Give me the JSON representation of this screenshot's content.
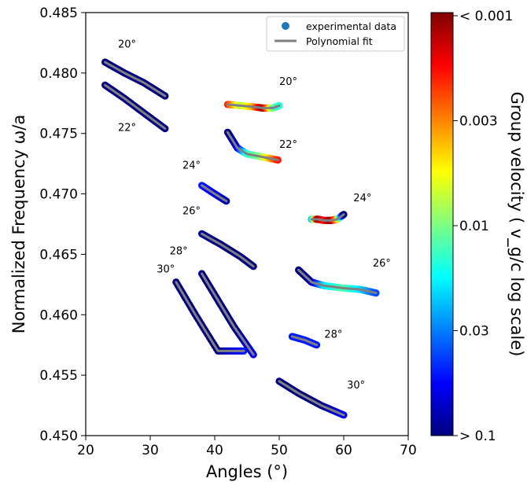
{
  "chart_data": {
    "type": "scatter",
    "xlabel": "Angles (°)",
    "ylabel": "Normalized Frequency ω/a",
    "xlim": [
      20,
      70
    ],
    "ylim": [
      0.45,
      0.485
    ],
    "xticks": [
      "20",
      "30",
      "40",
      "50",
      "60",
      "70"
    ],
    "yticks": [
      "0.450",
      "0.455",
      "0.460",
      "0.465",
      "0.470",
      "0.475",
      "0.480",
      "0.485"
    ],
    "grid": false,
    "legend": {
      "position": "top-right",
      "entries": [
        "experimental data",
        "Polynomial fit"
      ]
    },
    "colorbar": {
      "label": "Group velocity ( v_g/c log scale)",
      "scale": "log",
      "tick_labels": [
        "< 0.001",
        "0.003",
        "0.01",
        "0.03",
        "> 0.1"
      ],
      "colormap": "jet",
      "high_end": "< 0.001",
      "low_end": "> 0.1"
    },
    "colors": {
      "fit_line": "#808080",
      "legend_marker": "#1f77b4"
    },
    "series": [
      {
        "label": "20°",
        "points": [
          [
            23.0,
            0.4809
          ],
          [
            26.0,
            0.48
          ],
          [
            29.0,
            0.4792
          ],
          [
            32.3,
            0.4781
          ]
        ],
        "vg": [
          0.1,
          0.1,
          0.1,
          0.1
        ]
      },
      {
        "label": "22°",
        "points": [
          [
            23.0,
            0.479
          ],
          [
            26.0,
            0.4779
          ],
          [
            29.0,
            0.4767
          ],
          [
            32.3,
            0.4754
          ]
        ],
        "vg": [
          0.1,
          0.1,
          0.1,
          0.1
        ]
      },
      {
        "label": "24°",
        "points": [
          [
            38.0,
            0.4707
          ],
          [
            40.0,
            0.47
          ],
          [
            41.8,
            0.4694
          ]
        ],
        "vg": [
          0.05,
          0.06,
          0.08
        ]
      },
      {
        "label": "26°",
        "points": [
          [
            38.0,
            0.4667
          ],
          [
            41.0,
            0.4658
          ],
          [
            44.0,
            0.4648
          ],
          [
            46.0,
            0.464
          ]
        ],
        "vg": [
          0.09,
          0.1,
          0.1,
          0.1
        ]
      },
      {
        "label": "28°",
        "points": [
          [
            38.0,
            0.4634
          ],
          [
            40.5,
            0.4612
          ],
          [
            43.0,
            0.459
          ],
          [
            46.0,
            0.4567
          ]
        ],
        "vg": [
          0.1,
          0.1,
          0.1,
          0.06
        ]
      },
      {
        "label": "30°",
        "points": [
          [
            34.0,
            0.4627
          ],
          [
            37.0,
            0.46
          ],
          [
            40.5,
            0.457
          ],
          [
            44.5,
            0.457
          ]
        ],
        "vg": [
          0.1,
          0.1,
          0.1,
          0.05
        ]
      },
      {
        "label": "20°",
        "points": [
          [
            42.0,
            0.4774
          ],
          [
            44.0,
            0.4773
          ],
          [
            46.0,
            0.4772
          ],
          [
            47.5,
            0.4771
          ],
          [
            49.0,
            0.4771
          ],
          [
            50.0,
            0.4773
          ]
        ],
        "vg": [
          0.002,
          0.008,
          0.004,
          0.001,
          0.01,
          0.015
        ]
      },
      {
        "label": "22°",
        "points": [
          [
            42.0,
            0.4751
          ],
          [
            43.5,
            0.4738
          ],
          [
            45.0,
            0.4733
          ],
          [
            47.0,
            0.4731
          ],
          [
            49.8,
            0.4728
          ]
        ],
        "vg": [
          0.1,
          0.07,
          0.015,
          0.01,
          0.002
        ]
      },
      {
        "label": "24°",
        "points": [
          [
            55.0,
            0.4679
          ],
          [
            56.0,
            0.4679
          ],
          [
            57.0,
            0.4678
          ],
          [
            58.0,
            0.4678
          ],
          [
            59.0,
            0.4679
          ],
          [
            60.0,
            0.4683
          ]
        ],
        "vg": [
          0.03,
          0.001,
          0.002,
          0.001,
          0.004,
          0.1
        ]
      },
      {
        "label": "26°",
        "points": [
          [
            53.0,
            0.4637
          ],
          [
            55.0,
            0.4627
          ],
          [
            57.0,
            0.4624
          ],
          [
            60.0,
            0.4622
          ],
          [
            62.5,
            0.4621
          ],
          [
            65.0,
            0.4618
          ]
        ],
        "vg": [
          0.1,
          0.09,
          0.02,
          0.012,
          0.02,
          0.04
        ]
      },
      {
        "label": "28°",
        "points": [
          [
            52.0,
            0.4582
          ],
          [
            54.0,
            0.4579
          ],
          [
            55.8,
            0.4575
          ]
        ],
        "vg": [
          0.05,
          0.05,
          0.05
        ]
      },
      {
        "label": "30°",
        "points": [
          [
            50.0,
            0.4545
          ],
          [
            53.0,
            0.4535
          ],
          [
            56.5,
            0.4525
          ],
          [
            60.0,
            0.4517
          ]
        ],
        "vg": [
          0.1,
          0.1,
          0.1,
          0.06
        ]
      }
    ],
    "annotations": [
      {
        "text": "20°",
        "x": 25.0,
        "y": 0.4821
      },
      {
        "text": "22°",
        "x": 25.0,
        "y": 0.4752
      },
      {
        "text": "24°",
        "x": 35.0,
        "y": 0.4721
      },
      {
        "text": "26°",
        "x": 35.0,
        "y": 0.4683
      },
      {
        "text": "28°",
        "x": 33.0,
        "y": 0.465
      },
      {
        "text": "30°",
        "x": 31.0,
        "y": 0.4635
      },
      {
        "text": "20°",
        "x": 50.0,
        "y": 0.479
      },
      {
        "text": "22°",
        "x": 50.0,
        "y": 0.4738
      },
      {
        "text": "24°",
        "x": 61.5,
        "y": 0.4694
      },
      {
        "text": "26°",
        "x": 64.5,
        "y": 0.464
      },
      {
        "text": "28°",
        "x": 57.0,
        "y": 0.4581
      },
      {
        "text": "30°",
        "x": 60.5,
        "y": 0.4539
      }
    ]
  }
}
